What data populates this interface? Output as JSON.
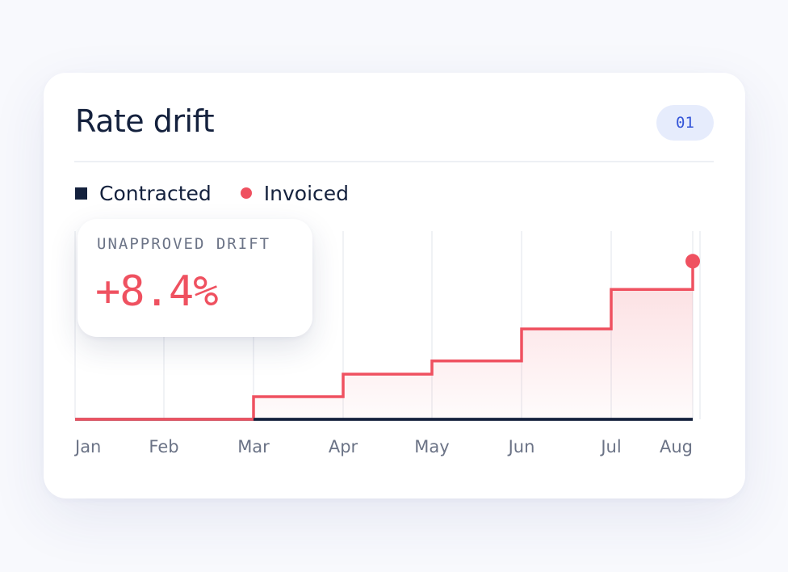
{
  "card": {
    "title": "Rate drift",
    "badge": "01"
  },
  "legend": [
    {
      "label": "Contracted",
      "color": "#14213d",
      "marker": "square"
    },
    {
      "label": "Invoiced",
      "color": "#ef5160",
      "marker": "dot"
    }
  ],
  "tooltip": {
    "label": "UNAPPROVED DRIFT",
    "value": "+8.4%"
  },
  "chart_data": {
    "type": "line",
    "step": true,
    "categories": [
      "Jan",
      "Feb",
      "Mar",
      "Apr",
      "May",
      "Jun",
      "Jul",
      "Aug"
    ],
    "series": [
      {
        "name": "Contracted",
        "color": "#14213d",
        "values": [
          0,
          0,
          0,
          0,
          0,
          0,
          0,
          0
        ]
      },
      {
        "name": "Invoiced",
        "color": "#ef5160",
        "values": [
          0,
          0,
          1.2,
          2.4,
          3.1,
          4.8,
          6.9,
          8.4
        ]
      }
    ],
    "ylim": [
      0,
      10
    ],
    "grid": true,
    "area_fill": true,
    "legend_position": "top-left"
  }
}
